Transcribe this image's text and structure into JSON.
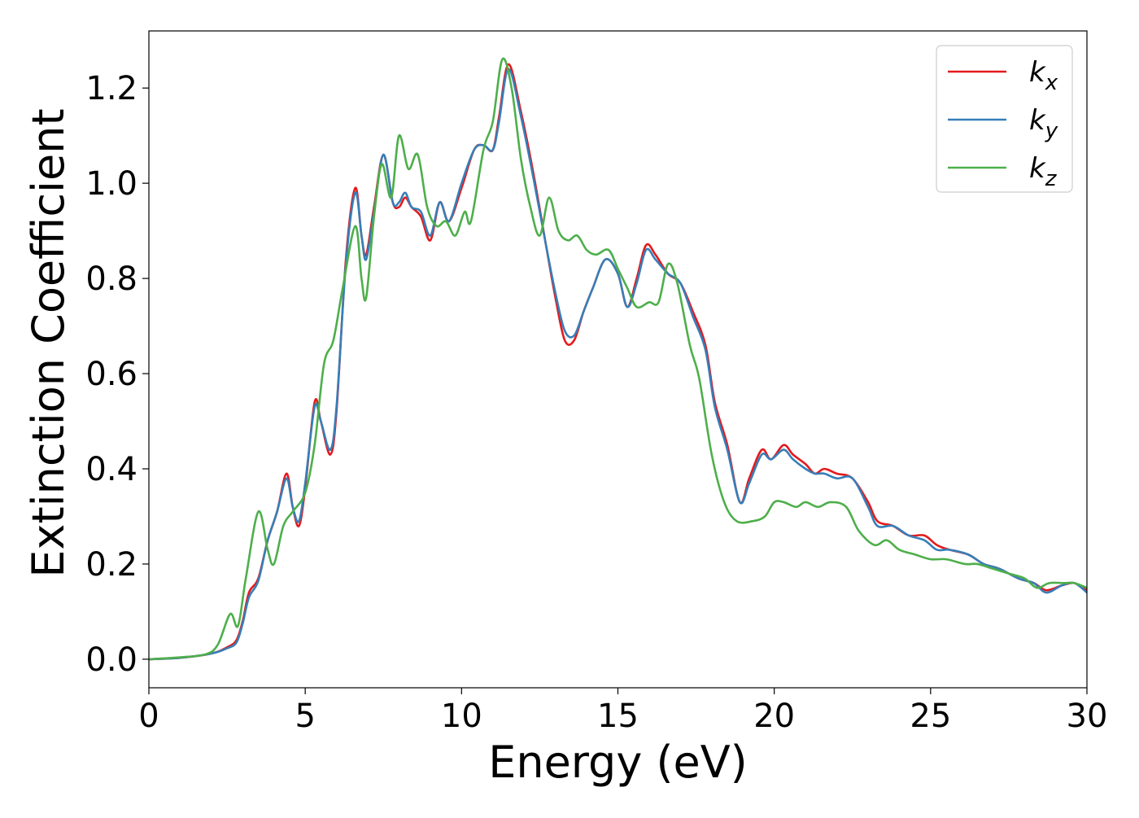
{
  "chart_data": {
    "type": "line",
    "xlabel": "Energy (eV)",
    "ylabel": "Extinction Coefficient",
    "xlim": [
      0,
      30
    ],
    "ylim": [
      -0.06,
      1.32
    ],
    "xticks": [
      "0",
      "5",
      "10",
      "15",
      "20",
      "25",
      "30"
    ],
    "yticks": [
      "0.0",
      "0.2",
      "0.4",
      "0.6",
      "0.8",
      "1.0",
      "1.2"
    ],
    "grid": false,
    "legend_position": "top-right",
    "series": [
      {
        "name": "k",
        "subscript": "x",
        "color": "#e41a1c",
        "points": [
          [
            0,
            0
          ],
          [
            1,
            0.003
          ],
          [
            2,
            0.012
          ],
          [
            2.5,
            0.025
          ],
          [
            2.8,
            0.04
          ],
          [
            3,
            0.08
          ],
          [
            3.2,
            0.14
          ],
          [
            3.5,
            0.17
          ],
          [
            3.8,
            0.25
          ],
          [
            4.1,
            0.31
          ],
          [
            4.4,
            0.39
          ],
          [
            4.6,
            0.32
          ],
          [
            4.8,
            0.28
          ],
          [
            5.0,
            0.36
          ],
          [
            5.3,
            0.54
          ],
          [
            5.5,
            0.5
          ],
          [
            5.8,
            0.43
          ],
          [
            6.0,
            0.52
          ],
          [
            6.3,
            0.84
          ],
          [
            6.6,
            0.99
          ],
          [
            6.8,
            0.89
          ],
          [
            6.95,
            0.85
          ],
          [
            7.2,
            0.95
          ],
          [
            7.5,
            1.06
          ],
          [
            7.8,
            0.96
          ],
          [
            8.0,
            0.95
          ],
          [
            8.2,
            0.97
          ],
          [
            8.4,
            0.95
          ],
          [
            8.7,
            0.93
          ],
          [
            9.0,
            0.88
          ],
          [
            9.3,
            0.96
          ],
          [
            9.6,
            0.92
          ],
          [
            10.0,
            0.99
          ],
          [
            10.4,
            1.07
          ],
          [
            10.7,
            1.08
          ],
          [
            11.0,
            1.07
          ],
          [
            11.2,
            1.14
          ],
          [
            11.5,
            1.25
          ],
          [
            11.9,
            1.15
          ],
          [
            12.3,
            1.02
          ],
          [
            12.7,
            0.87
          ],
          [
            13.0,
            0.76
          ],
          [
            13.3,
            0.67
          ],
          [
            13.6,
            0.67
          ],
          [
            13.9,
            0.73
          ],
          [
            14.2,
            0.78
          ],
          [
            14.6,
            0.84
          ],
          [
            15.0,
            0.81
          ],
          [
            15.3,
            0.74
          ],
          [
            15.6,
            0.8
          ],
          [
            15.9,
            0.87
          ],
          [
            16.2,
            0.85
          ],
          [
            16.6,
            0.81
          ],
          [
            17.0,
            0.79
          ],
          [
            17.4,
            0.73
          ],
          [
            17.8,
            0.66
          ],
          [
            18.1,
            0.54
          ],
          [
            18.5,
            0.45
          ],
          [
            18.9,
            0.33
          ],
          [
            19.2,
            0.38
          ],
          [
            19.6,
            0.44
          ],
          [
            19.9,
            0.42
          ],
          [
            20.3,
            0.45
          ],
          [
            20.6,
            0.43
          ],
          [
            21.0,
            0.41
          ],
          [
            21.3,
            0.39
          ],
          [
            21.6,
            0.4
          ],
          [
            22.0,
            0.39
          ],
          [
            22.5,
            0.38
          ],
          [
            23.0,
            0.33
          ],
          [
            23.3,
            0.29
          ],
          [
            23.8,
            0.28
          ],
          [
            24.3,
            0.26
          ],
          [
            24.8,
            0.26
          ],
          [
            25.2,
            0.24
          ],
          [
            25.6,
            0.23
          ],
          [
            26.2,
            0.22
          ],
          [
            26.7,
            0.2
          ],
          [
            27.2,
            0.19
          ],
          [
            27.8,
            0.17
          ],
          [
            28.3,
            0.16
          ],
          [
            28.7,
            0.145
          ],
          [
            29.2,
            0.155
          ],
          [
            29.6,
            0.16
          ],
          [
            30,
            0.145
          ]
        ]
      },
      {
        "name": "k",
        "subscript": "y",
        "color": "#377eb8",
        "points": [
          [
            0,
            0
          ],
          [
            1,
            0.003
          ],
          [
            2,
            0.012
          ],
          [
            2.5,
            0.023
          ],
          [
            2.8,
            0.035
          ],
          [
            3,
            0.075
          ],
          [
            3.2,
            0.13
          ],
          [
            3.5,
            0.165
          ],
          [
            3.8,
            0.25
          ],
          [
            4.1,
            0.31
          ],
          [
            4.4,
            0.38
          ],
          [
            4.6,
            0.32
          ],
          [
            4.8,
            0.29
          ],
          [
            5.0,
            0.37
          ],
          [
            5.3,
            0.53
          ],
          [
            5.5,
            0.5
          ],
          [
            5.8,
            0.44
          ],
          [
            6.0,
            0.53
          ],
          [
            6.3,
            0.83
          ],
          [
            6.6,
            0.98
          ],
          [
            6.8,
            0.89
          ],
          [
            6.95,
            0.84
          ],
          [
            7.2,
            0.94
          ],
          [
            7.5,
            1.06
          ],
          [
            7.8,
            0.96
          ],
          [
            8.0,
            0.96
          ],
          [
            8.2,
            0.98
          ],
          [
            8.4,
            0.95
          ],
          [
            8.7,
            0.94
          ],
          [
            9.0,
            0.89
          ],
          [
            9.3,
            0.96
          ],
          [
            9.6,
            0.92
          ],
          [
            10.0,
            1.0
          ],
          [
            10.4,
            1.07
          ],
          [
            10.7,
            1.08
          ],
          [
            11.0,
            1.07
          ],
          [
            11.2,
            1.13
          ],
          [
            11.5,
            1.24
          ],
          [
            11.9,
            1.14
          ],
          [
            12.3,
            1.01
          ],
          [
            12.7,
            0.87
          ],
          [
            13.0,
            0.77
          ],
          [
            13.3,
            0.69
          ],
          [
            13.6,
            0.68
          ],
          [
            13.9,
            0.73
          ],
          [
            14.2,
            0.78
          ],
          [
            14.6,
            0.84
          ],
          [
            15.0,
            0.81
          ],
          [
            15.3,
            0.74
          ],
          [
            15.6,
            0.79
          ],
          [
            15.9,
            0.86
          ],
          [
            16.2,
            0.84
          ],
          [
            16.6,
            0.81
          ],
          [
            17.0,
            0.79
          ],
          [
            17.4,
            0.72
          ],
          [
            17.8,
            0.65
          ],
          [
            18.1,
            0.53
          ],
          [
            18.5,
            0.44
          ],
          [
            18.9,
            0.33
          ],
          [
            19.2,
            0.37
          ],
          [
            19.6,
            0.43
          ],
          [
            19.9,
            0.42
          ],
          [
            20.3,
            0.44
          ],
          [
            20.6,
            0.42
          ],
          [
            21.0,
            0.4
          ],
          [
            21.3,
            0.39
          ],
          [
            21.6,
            0.39
          ],
          [
            22.0,
            0.38
          ],
          [
            22.5,
            0.38
          ],
          [
            23.0,
            0.32
          ],
          [
            23.3,
            0.28
          ],
          [
            23.8,
            0.28
          ],
          [
            24.3,
            0.26
          ],
          [
            24.8,
            0.25
          ],
          [
            25.2,
            0.23
          ],
          [
            25.6,
            0.23
          ],
          [
            26.2,
            0.22
          ],
          [
            26.7,
            0.2
          ],
          [
            27.2,
            0.19
          ],
          [
            27.8,
            0.17
          ],
          [
            28.3,
            0.16
          ],
          [
            28.7,
            0.14
          ],
          [
            29.2,
            0.155
          ],
          [
            29.6,
            0.16
          ],
          [
            30,
            0.14
          ]
        ]
      },
      {
        "name": "k",
        "subscript": "z",
        "color": "#4daf4a",
        "points": [
          [
            0,
            0
          ],
          [
            1,
            0.004
          ],
          [
            1.8,
            0.01
          ],
          [
            2.2,
            0.03
          ],
          [
            2.6,
            0.095
          ],
          [
            2.85,
            0.07
          ],
          [
            3.1,
            0.17
          ],
          [
            3.5,
            0.31
          ],
          [
            3.8,
            0.23
          ],
          [
            4.0,
            0.2
          ],
          [
            4.3,
            0.28
          ],
          [
            4.6,
            0.31
          ],
          [
            5.0,
            0.35
          ],
          [
            5.3,
            0.45
          ],
          [
            5.6,
            0.62
          ],
          [
            5.9,
            0.67
          ],
          [
            6.2,
            0.78
          ],
          [
            6.6,
            0.91
          ],
          [
            6.8,
            0.8
          ],
          [
            6.95,
            0.76
          ],
          [
            7.2,
            0.93
          ],
          [
            7.45,
            1.04
          ],
          [
            7.75,
            0.97
          ],
          [
            8.0,
            1.1
          ],
          [
            8.3,
            1.03
          ],
          [
            8.6,
            1.06
          ],
          [
            8.9,
            0.95
          ],
          [
            9.2,
            0.91
          ],
          [
            9.5,
            0.92
          ],
          [
            9.8,
            0.89
          ],
          [
            10.1,
            0.94
          ],
          [
            10.3,
            0.92
          ],
          [
            10.7,
            1.07
          ],
          [
            11.0,
            1.13
          ],
          [
            11.3,
            1.26
          ],
          [
            11.6,
            1.2
          ],
          [
            11.9,
            1.05
          ],
          [
            12.2,
            0.95
          ],
          [
            12.5,
            0.89
          ],
          [
            12.8,
            0.97
          ],
          [
            13.1,
            0.9
          ],
          [
            13.4,
            0.88
          ],
          [
            13.7,
            0.89
          ],
          [
            14.0,
            0.86
          ],
          [
            14.3,
            0.85
          ],
          [
            14.7,
            0.86
          ],
          [
            15.0,
            0.82
          ],
          [
            15.3,
            0.78
          ],
          [
            15.6,
            0.74
          ],
          [
            16.0,
            0.75
          ],
          [
            16.3,
            0.75
          ],
          [
            16.6,
            0.83
          ],
          [
            16.9,
            0.79
          ],
          [
            17.3,
            0.66
          ],
          [
            17.6,
            0.59
          ],
          [
            18.0,
            0.43
          ],
          [
            18.4,
            0.33
          ],
          [
            18.8,
            0.29
          ],
          [
            19.3,
            0.29
          ],
          [
            19.7,
            0.3
          ],
          [
            20.0,
            0.33
          ],
          [
            20.3,
            0.33
          ],
          [
            20.7,
            0.32
          ],
          [
            21.0,
            0.33
          ],
          [
            21.4,
            0.32
          ],
          [
            21.8,
            0.33
          ],
          [
            22.3,
            0.32
          ],
          [
            22.7,
            0.27
          ],
          [
            23.2,
            0.24
          ],
          [
            23.6,
            0.25
          ],
          [
            24.0,
            0.23
          ],
          [
            24.5,
            0.22
          ],
          [
            25.0,
            0.21
          ],
          [
            25.5,
            0.21
          ],
          [
            26.1,
            0.2
          ],
          [
            26.5,
            0.2
          ],
          [
            27.0,
            0.19
          ],
          [
            27.5,
            0.18
          ],
          [
            28.0,
            0.17
          ],
          [
            28.4,
            0.15
          ],
          [
            28.8,
            0.16
          ],
          [
            29.3,
            0.16
          ],
          [
            29.6,
            0.16
          ],
          [
            30,
            0.15
          ]
        ]
      }
    ]
  }
}
